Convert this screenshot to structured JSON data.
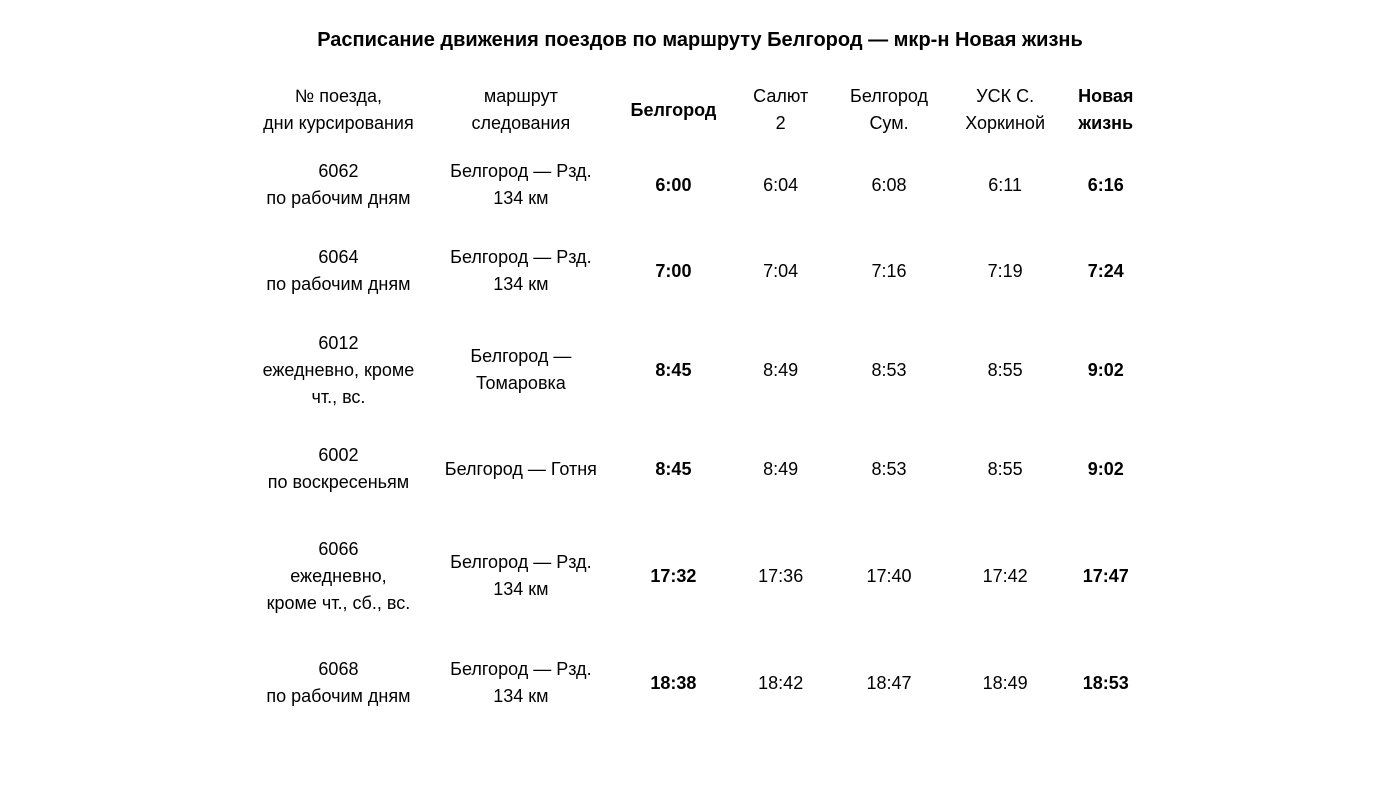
{
  "title": "Расписание движения поездов по маршруту Белгород — мкр-н Новая жизнь",
  "table": {
    "columns": [
      {
        "label": "№ поезда,\nдни курсирования",
        "bold": false
      },
      {
        "label": "маршрут\nследования",
        "bold": false
      },
      {
        "label": "Белгород",
        "bold": true
      },
      {
        "label": "Салют\n2",
        "bold": false
      },
      {
        "label": "Белгород\nСум.",
        "bold": false
      },
      {
        "label": "УСК С.\nХоркиной",
        "bold": false
      },
      {
        "label": "Новая\nжизнь",
        "bold": true
      }
    ],
    "rows": [
      {
        "height": "normal",
        "train": "6062\nпо рабочим дням",
        "route": "Белгород — Рзд.\n134 км",
        "stops": [
          "6:00",
          "6:04",
          "6:08",
          "6:11",
          "6:16"
        ]
      },
      {
        "height": "normal",
        "train": "6064\nпо рабочим дням",
        "route": "Белгород — Рзд.\n134 км",
        "stops": [
          "7:00",
          "7:04",
          "7:16",
          "7:19",
          "7:24"
        ]
      },
      {
        "height": "tall",
        "train": "6012\nежедневно, кроме\nчт., вс.",
        "route": "Белгород —\nТомаровка",
        "stops": [
          "8:45",
          "8:49",
          "8:53",
          "8:55",
          "9:02"
        ]
      },
      {
        "height": "normal",
        "train": "6002\nпо воскресеньям",
        "route": "Белгород — Готня",
        "stops": [
          "8:45",
          "8:49",
          "8:53",
          "8:55",
          "9:02"
        ]
      },
      {
        "height": "taller",
        "train": "6066\nежедневно,\nкроме чт., сб., вс.",
        "route": "Белгород — Рзд.\n134 км",
        "stops": [
          "17:32",
          "17:36",
          "17:40",
          "17:42",
          "17:47"
        ]
      },
      {
        "height": "normal",
        "train": "6068\nпо рабочим дням",
        "route": "Белгород — Рзд.\n134 км",
        "stops": [
          "18:38",
          "18:42",
          "18:47",
          "18:49",
          "18:53"
        ]
      }
    ],
    "bold_stop_indices": [
      0,
      4
    ],
    "text_color": "#000000",
    "background_color": "#ffffff",
    "title_fontsize": 20,
    "cell_fontsize": 18
  }
}
